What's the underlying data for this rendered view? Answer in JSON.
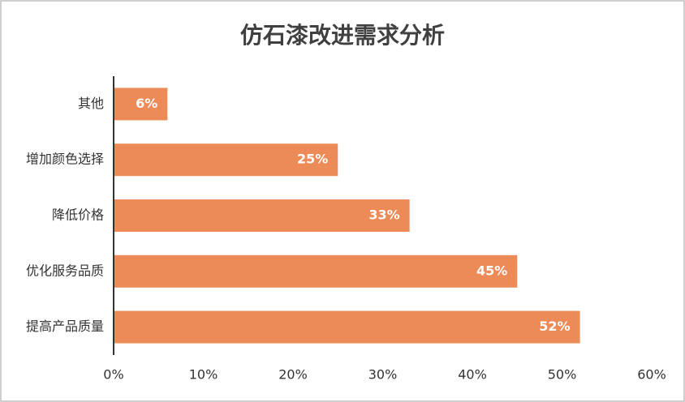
{
  "chart_data": {
    "type": "hbar",
    "title": "仿石漆改进需求分析",
    "categories": [
      "其他",
      "增加颜色选择",
      "降低价格",
      "优化服务品质",
      "提高产品质量"
    ],
    "values": [
      6,
      25,
      33,
      45,
      52
    ],
    "value_labels": [
      "6%",
      "25%",
      "33%",
      "45%",
      "52%"
    ],
    "color": "#ec8b58",
    "xlim": [
      0,
      60
    ],
    "xticks": [
      {
        "value": 0,
        "label": "0%"
      },
      {
        "value": 10,
        "label": "10%"
      },
      {
        "value": 20,
        "label": "20%"
      },
      {
        "value": 30,
        "label": "30%"
      },
      {
        "value": 40,
        "label": "40%"
      },
      {
        "value": 50,
        "label": "50%"
      },
      {
        "value": 60,
        "label": "60%"
      }
    ]
  }
}
